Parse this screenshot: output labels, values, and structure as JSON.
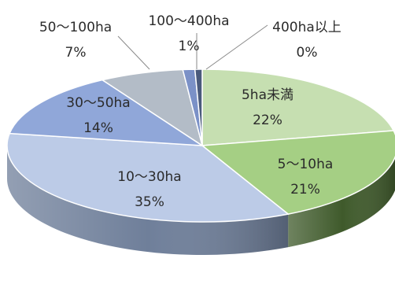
{
  "chart_data": {
    "type": "pie",
    "style": "3d",
    "legend": "none",
    "slices": [
      {
        "name": "5ha未満",
        "value": 22,
        "label": "22%",
        "top": "#c6dfb1",
        "side": "#8da86f"
      },
      {
        "name": "5～10ha",
        "value": 21,
        "label": "21%",
        "top": "#a5cf84",
        "side": "#3f5a2b"
      },
      {
        "name": "10～30ha",
        "value": 35,
        "label": "35%",
        "top": "#bccbe7",
        "side": "#6f7f9a"
      },
      {
        "name": "30～50ha",
        "value": 14,
        "label": "14%",
        "top": "#90a7d9",
        "side": "#5c6f97"
      },
      {
        "name": "50～100ha",
        "value": 7,
        "label": "7%",
        "top": "#b3bcc7",
        "side": "#747c86"
      },
      {
        "name": "100～400ha",
        "value": 1,
        "label": "1%",
        "top": "#7b91c7",
        "side": "#4f5f88"
      },
      {
        "name": "400ha以上",
        "value": 0,
        "label": "0%",
        "top": "#4a5a7c",
        "side": "#2f3a52"
      }
    ]
  }
}
